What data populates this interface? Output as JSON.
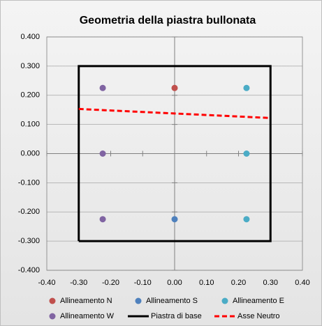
{
  "chart_data": {
    "type": "scatter",
    "title": "Geometria della piastra bullonata",
    "xlim": [
      -0.4,
      0.4
    ],
    "xticks": [
      {
        "value": -0.4,
        "label": "-0.40"
      },
      {
        "value": -0.3,
        "label": "-0.30"
      },
      {
        "value": -0.2,
        "label": "-0.20"
      },
      {
        "value": -0.1,
        "label": "-0.10"
      },
      {
        "value": 0,
        "label": "0.00"
      },
      {
        "value": 0.1,
        "label": "0.10"
      },
      {
        "value": 0.2,
        "label": "0.20"
      },
      {
        "value": 0.3,
        "label": "0.30"
      },
      {
        "value": 0.4,
        "label": "0.40"
      }
    ],
    "ylim": [
      -0.4,
      0.4
    ],
    "yticks": [
      {
        "value": -0.4,
        "label": "-0.400"
      },
      {
        "value": -0.3,
        "label": "-0.300"
      },
      {
        "value": -0.2,
        "label": "-0.200"
      },
      {
        "value": -0.1,
        "label": "-0.100"
      },
      {
        "value": 0,
        "label": "0.000"
      },
      {
        "value": 0.1,
        "label": "0.100"
      },
      {
        "value": 0.2,
        "label": "0.200"
      },
      {
        "value": 0.3,
        "label": "0.300"
      },
      {
        "value": 0.4,
        "label": "0.400"
      }
    ],
    "grid": true,
    "legend": "bottom",
    "series": [
      {
        "name": "Allineamento N",
        "mode": "markers",
        "color": "#c0504d",
        "x": [
          0
        ],
        "values": [
          0.225
        ]
      },
      {
        "name": "Allineamento S",
        "mode": "markers",
        "color": "#4f81bd",
        "x": [
          0
        ],
        "values": [
          -0.225
        ]
      },
      {
        "name": "Allineamento E",
        "mode": "markers",
        "color": "#4bacc6",
        "x": [
          0.225,
          0.225,
          0.225
        ],
        "values": [
          0.225,
          0,
          -0.225
        ]
      },
      {
        "name": "Allineamento W",
        "mode": "markers",
        "color": "#8064a2",
        "x": [
          -0.225,
          -0.225,
          -0.225
        ],
        "values": [
          0.225,
          0,
          -0.225
        ]
      },
      {
        "name": "Piastra di base",
        "mode": "line",
        "color": "#000000",
        "x": [
          -0.3,
          -0.3,
          0.3,
          0.3,
          -0.3
        ],
        "values": [
          -0.3,
          0.3,
          0.3,
          -0.3,
          -0.3
        ]
      },
      {
        "name": "Asse Neutro",
        "mode": "dash",
        "color": "#ff0000",
        "x": [
          -0.3,
          0.3
        ],
        "values": [
          0.153,
          0.122
        ]
      }
    ]
  }
}
